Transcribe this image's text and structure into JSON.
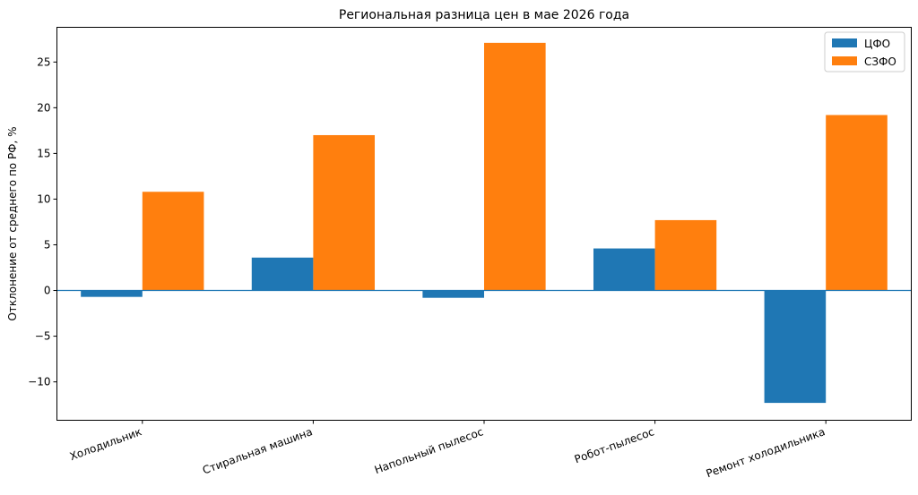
{
  "chart_data": {
    "type": "bar",
    "title": "Региональная разница цен в мае 2026 года",
    "xlabel": "",
    "ylabel": "Отклонение от среднего по РФ, %",
    "categories": [
      "Холодильник",
      "Стиральная машина",
      "Напольный пылесос",
      "Робот-пылесос",
      "Ремонт холодильника"
    ],
    "series": [
      {
        "name": "ЦФО",
        "color": "#1f77b4",
        "values": [
          -0.7,
          3.6,
          -0.8,
          4.6,
          -12.3
        ]
      },
      {
        "name": "СЗФО",
        "color": "#ff7f0e",
        "values": [
          10.8,
          17.0,
          27.1,
          7.7,
          19.2
        ]
      }
    ],
    "ylim": [
      -14.2,
      28.8
    ],
    "yticks": [
      -10,
      -5,
      0,
      5,
      10,
      15,
      20,
      25
    ],
    "ytick_labels": [
      "−10",
      "−5",
      "0",
      "5",
      "10",
      "15",
      "20",
      "25"
    ],
    "zero_line_color": "#1f77b4",
    "grid": false,
    "legend_position": "top-right"
  }
}
